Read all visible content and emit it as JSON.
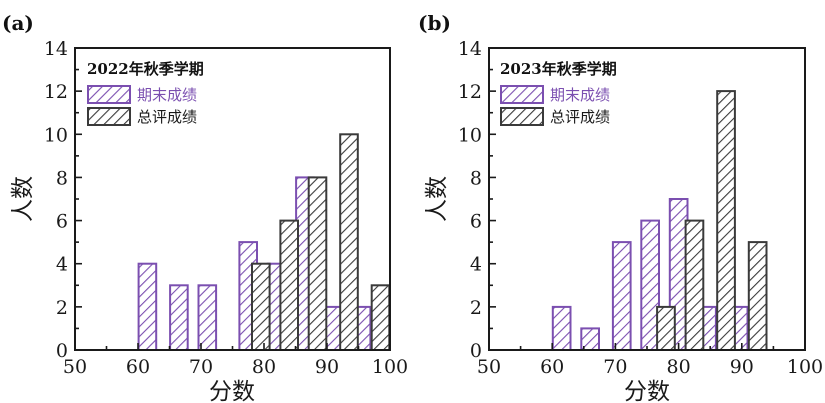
{
  "colors": {
    "final": "#7b4fb0",
    "overall": "#3a3a3a",
    "axis": "#1a1a1a"
  },
  "chart_data": [
    {
      "type": "bar",
      "panel_label": "(a)",
      "title": "2022年秋季学期",
      "xlabel": "分数",
      "ylabel": "人数",
      "xlim": [
        50,
        100
      ],
      "ylim": [
        0,
        14
      ],
      "xticks": [
        50,
        60,
        70,
        80,
        90,
        100
      ],
      "yticks": [
        0,
        2,
        4,
        6,
        8,
        10,
        12,
        14
      ],
      "bin_width": 2.8,
      "legend_position": "top-left",
      "series": [
        {
          "name": "期末成绩",
          "color": "#7b4fb0",
          "bins": [
            {
              "x": 61.5,
              "value": 4
            },
            {
              "x": 66.5,
              "value": 3
            },
            {
              "x": 71.0,
              "value": 3
            },
            {
              "x": 77.5,
              "value": 5
            },
            {
              "x": 82.0,
              "value": 4
            },
            {
              "x": 86.5,
              "value": 8
            },
            {
              "x": 91.0,
              "value": 2
            },
            {
              "x": 95.5,
              "value": 2
            }
          ]
        },
        {
          "name": "总评成绩",
          "color": "#3a3a3a",
          "bins": [
            {
              "x": 79.5,
              "value": 4
            },
            {
              "x": 84.0,
              "value": 6
            },
            {
              "x": 88.5,
              "value": 8
            },
            {
              "x": 93.5,
              "value": 10
            },
            {
              "x": 98.5,
              "value": 3
            }
          ]
        }
      ]
    },
    {
      "type": "bar",
      "panel_label": "(b)",
      "title": "2023年秋季学期",
      "xlabel": "分数",
      "ylabel": "人数",
      "xlim": [
        50,
        100
      ],
      "ylim": [
        0,
        14
      ],
      "xticks": [
        50,
        60,
        70,
        80,
        90,
        100
      ],
      "yticks": [
        0,
        2,
        4,
        6,
        8,
        10,
        12,
        14
      ],
      "bin_width": 2.8,
      "legend_position": "top-left",
      "series": [
        {
          "name": "期末成绩",
          "color": "#7b4fb0",
          "bins": [
            {
              "x": 61.5,
              "value": 2
            },
            {
              "x": 66.0,
              "value": 1
            },
            {
              "x": 71.0,
              "value": 5
            },
            {
              "x": 75.5,
              "value": 6
            },
            {
              "x": 80.0,
              "value": 7
            },
            {
              "x": 84.5,
              "value": 2
            },
            {
              "x": 89.5,
              "value": 2
            }
          ]
        },
        {
          "name": "总评成绩",
          "color": "#3a3a3a",
          "bins": [
            {
              "x": 78.0,
              "value": 2
            },
            {
              "x": 82.5,
              "value": 6
            },
            {
              "x": 87.5,
              "value": 12
            },
            {
              "x": 92.5,
              "value": 5
            }
          ]
        }
      ]
    }
  ]
}
